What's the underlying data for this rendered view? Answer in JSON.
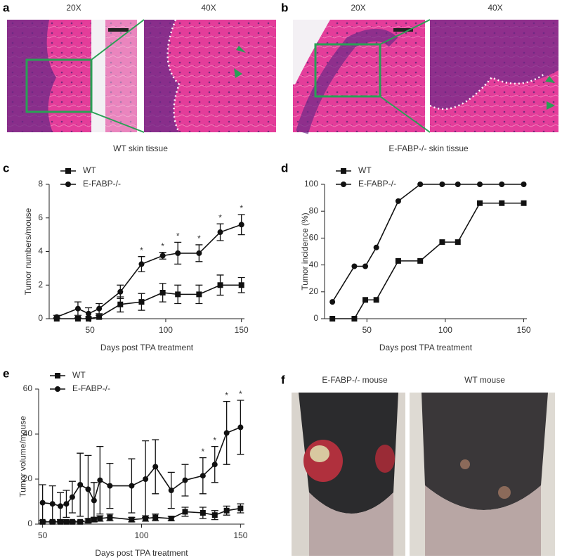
{
  "figure": {
    "panel_a": {
      "letter": "a",
      "labels": [
        "20X",
        "40X"
      ],
      "caption": "WT skin tissue"
    },
    "panel_b": {
      "letter": "b",
      "labels": [
        "20X",
        "40X"
      ],
      "caption": "E-FABP-/- skin tissue"
    },
    "panel_f": {
      "letter": "f",
      "labels": [
        "E-FABP-/- mouse",
        "WT mouse"
      ]
    }
  },
  "chart_data": [
    {
      "type": "line",
      "panel_label": "c",
      "y_label": "Tumor numbers/mouse",
      "x_label": "Days post TPA treatment",
      "x": [
        28,
        42,
        49,
        56,
        70,
        84,
        98,
        108,
        122,
        136,
        150
      ],
      "xlim": [
        23,
        152
      ],
      "xticks": [
        50,
        100,
        150
      ],
      "ylim": [
        0,
        8
      ],
      "yticks": [
        0,
        2,
        4,
        6,
        8
      ],
      "legend": "upper left",
      "series": [
        {
          "name": "WT",
          "color": "#111111",
          "marker": "square",
          "values": [
            0,
            0,
            0,
            0.1,
            0.85,
            1.0,
            1.55,
            1.45,
            1.45,
            2.0,
            2.0
          ],
          "errors": [
            0.05,
            0.05,
            0.1,
            0.1,
            0.45,
            0.5,
            0.55,
            0.55,
            0.55,
            0.6,
            0.45
          ]
        },
        {
          "name": "E-FABP-/-",
          "color": "#111111",
          "marker": "circle",
          "values": [
            0.1,
            0.6,
            0.3,
            0.6,
            1.6,
            3.25,
            3.75,
            3.9,
            3.9,
            5.15,
            5.6
          ],
          "errors": [
            0.1,
            0.4,
            0.35,
            0.3,
            0.4,
            0.45,
            0.2,
            0.65,
            0.5,
            0.5,
            0.6
          ],
          "stars": [
            null,
            null,
            null,
            null,
            null,
            "*",
            "*",
            "*",
            "*",
            "*",
            "*"
          ]
        }
      ]
    },
    {
      "type": "line",
      "panel_label": "d",
      "y_label": "Tumor incidence (%)",
      "x_label": "Days post TPA treatment",
      "x": [
        28,
        42,
        49,
        56,
        70,
        84,
        98,
        108,
        122,
        136,
        150
      ],
      "xlim": [
        23,
        152
      ],
      "xticks": [
        50,
        100,
        150
      ],
      "ylim": [
        0,
        100
      ],
      "yticks": [
        0,
        20,
        40,
        60,
        80,
        100
      ],
      "legend": "upper left",
      "series": [
        {
          "name": "WT",
          "color": "#111111",
          "marker": "square",
          "values": [
            0,
            0,
            14,
            14,
            43,
            43,
            57,
            57,
            86,
            86,
            86
          ]
        },
        {
          "name": "E-FABP-/-",
          "color": "#111111",
          "marker": "circle",
          "values": [
            12.5,
            39,
            39,
            53,
            87.5,
            100,
            100,
            100,
            100,
            100,
            100
          ]
        }
      ]
    },
    {
      "type": "line",
      "panel_label": "e",
      "y_label": "Tumor volume/mouse",
      "x_label": "Days post TPA treatment",
      "x": [
        50,
        55,
        59,
        62,
        65,
        69,
        73,
        76,
        79,
        84,
        95,
        102,
        107,
        115,
        122,
        131,
        137,
        143,
        150
      ],
      "xlim": [
        48,
        152
      ],
      "xticks": [
        50,
        100,
        150
      ],
      "ylim": [
        0,
        60
      ],
      "yticks": [
        0,
        20,
        40,
        60
      ],
      "legend": "upper left",
      "series": [
        {
          "name": "WT",
          "color": "#111111",
          "marker": "square",
          "values": [
            1,
            1,
            1,
            1,
            1,
            1,
            1.5,
            2,
            2.5,
            3,
            2,
            2.5,
            3,
            2.5,
            5.5,
            5,
            4,
            6,
            7
          ],
          "errors": [
            0.5,
            0.5,
            0.5,
            0.5,
            0.5,
            0.5,
            0.8,
            1,
            1.2,
            1.5,
            1,
            1.2,
            1.5,
            1,
            2,
            2.5,
            2,
            2,
            2
          ]
        },
        {
          "name": "E-FABP-/-",
          "color": "#111111",
          "marker": "circle",
          "values": [
            9.5,
            9,
            8,
            9,
            12,
            17.5,
            15.5,
            10.5,
            19.5,
            17,
            17,
            20,
            25.5,
            15,
            19.5,
            21.5,
            26.5,
            40.5,
            43
          ],
          "errors": [
            8,
            8,
            6,
            6,
            7,
            14,
            15,
            8,
            15,
            10,
            12,
            17,
            12,
            8,
            7,
            8,
            8,
            14,
            12
          ],
          "stars": [
            null,
            null,
            null,
            null,
            null,
            null,
            null,
            null,
            null,
            null,
            null,
            null,
            null,
            null,
            null,
            "*",
            "*",
            "*",
            "*"
          ]
        }
      ]
    }
  ]
}
